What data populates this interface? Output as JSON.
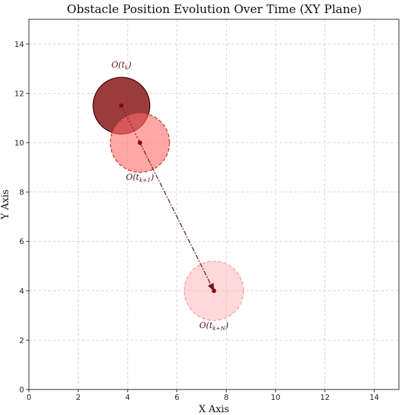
{
  "chart_data": {
    "type": "scatter",
    "title": "Obstacle Position Evolution Over Time (XY Plane)",
    "xlabel": "X Axis",
    "ylabel": "Y Axis",
    "xlim": [
      0,
      15
    ],
    "ylim": [
      0,
      15
    ],
    "xticks": [
      0,
      2,
      4,
      6,
      8,
      10,
      12,
      14
    ],
    "yticks": [
      0,
      2,
      4,
      6,
      8,
      10,
      12,
      14
    ],
    "grid": true,
    "obstacles": [
      {
        "label": "O(t_k)",
        "x": 3.75,
        "y": 11.5,
        "radius": 1.15,
        "fill": "#8b1a1a",
        "fill_opacity": 0.85,
        "edge": "#4a0000",
        "edge_style": "solid"
      },
      {
        "label": "O(t_{k+1})",
        "x": 4.5,
        "y": 10.0,
        "radius": 1.2,
        "fill": "#ff6b6b",
        "fill_opacity": 0.6,
        "edge": "#c0392b",
        "edge_style": "dashed"
      },
      {
        "label": "O(t_{k+N})",
        "x": 7.5,
        "y": 4.0,
        "radius": 1.2,
        "fill": "#ffb3b3",
        "fill_opacity": 0.5,
        "edge": "#f29a9a",
        "edge_style": "dashed"
      }
    ],
    "arrows": [
      {
        "from": [
          3.75,
          11.5
        ],
        "to": [
          4.5,
          10.0
        ],
        "style": "dotted",
        "head": false
      },
      {
        "from": [
          4.5,
          10.0
        ],
        "to": [
          7.5,
          4.0
        ],
        "style": "dashdot",
        "head": true
      }
    ],
    "center_color": "#8b0000",
    "arrow_color": "#6b1a1a",
    "label_color": "#5a1010"
  }
}
